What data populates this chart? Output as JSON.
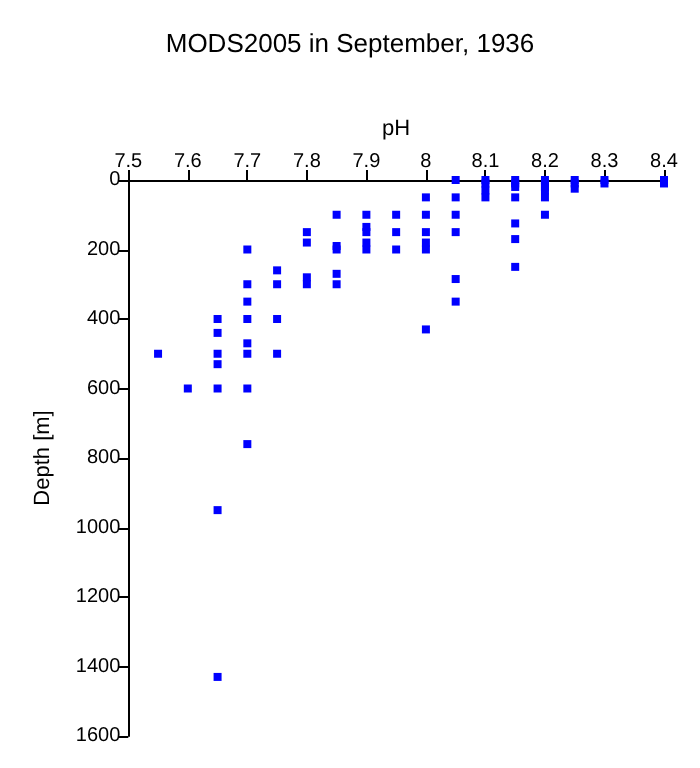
{
  "chart_data": {
    "type": "scatter",
    "title": "MODS2005 in September, 1936",
    "xlabel": "pH",
    "ylabel": "Depth [m]",
    "xlim": [
      7.5,
      8.4
    ],
    "xticks": [
      7.5,
      7.6,
      7.7,
      7.8,
      7.9,
      8,
      8.1,
      8.2,
      8.3,
      8.4
    ],
    "ylim": [
      1600,
      0
    ],
    "yticks": [
      0,
      200,
      400,
      600,
      800,
      1000,
      1200,
      1400,
      1600
    ],
    "grid": false,
    "marker": "square",
    "series": [
      {
        "color": "#0000ff",
        "x": [
          7.55,
          7.6,
          7.65,
          7.65,
          7.65,
          7.65,
          7.65,
          7.65,
          7.65,
          7.7,
          7.7,
          7.7,
          7.7,
          7.7,
          7.7,
          7.7,
          7.7,
          7.75,
          7.75,
          7.75,
          7.75,
          7.8,
          7.8,
          7.8,
          7.8,
          7.85,
          7.85,
          7.85,
          7.85,
          7.85,
          7.9,
          7.9,
          7.9,
          7.9,
          7.9,
          7.95,
          7.95,
          7.95,
          8,
          8,
          8,
          8,
          8,
          8,
          8.05,
          8.05,
          8.05,
          8.05,
          8.05,
          8.05,
          8.1,
          8.1,
          8.1,
          8.1,
          8.15,
          8.15,
          8.15,
          8.15,
          8.15,
          8.15,
          8.15,
          8.2,
          8.2,
          8.2,
          8.2,
          8.2,
          8.2,
          8.25,
          8.25,
          8.25,
          8.3,
          8.3,
          8.4,
          8.4
        ],
        "values": [
          500,
          600,
          400,
          440,
          500,
          530,
          600,
          950,
          1430,
          200,
          300,
          350,
          400,
          470,
          500,
          600,
          760,
          260,
          300,
          400,
          500,
          150,
          180,
          280,
          300,
          100,
          190,
          200,
          270,
          300,
          100,
          135,
          150,
          180,
          200,
          100,
          150,
          200,
          50,
          100,
          150,
          180,
          200,
          430,
          0,
          50,
          100,
          150,
          285,
          350,
          10,
          30,
          50,
          0,
          0,
          10,
          20,
          50,
          125,
          170,
          250,
          0,
          10,
          20,
          30,
          50,
          100,
          0,
          10,
          25,
          0,
          10,
          0,
          10
        ]
      }
    ]
  }
}
